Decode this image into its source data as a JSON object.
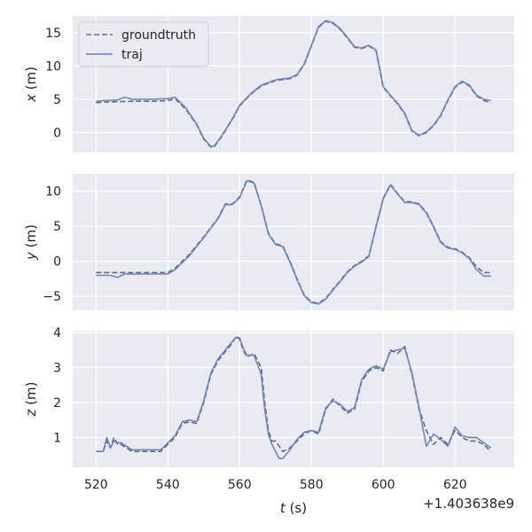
{
  "chart_data": {
    "type": "line",
    "shared_x": {
      "label_var": "t",
      "label_unit": " (s)",
      "ticks": [
        520,
        540,
        560,
        580,
        600,
        620
      ],
      "tick_labels": [
        "520",
        "540",
        "560",
        "580",
        "600",
        "620"
      ],
      "range": [
        513.5,
        636.5
      ],
      "offset_text": "+1.403638e9"
    },
    "legend": {
      "placement": "upper-left of top panel",
      "entries": [
        {
          "label": "groundtruth",
          "style": "dashed",
          "color": "#6b6b6b"
        },
        {
          "label": "traj",
          "style": "solid",
          "color": "#6a7fc0"
        }
      ]
    },
    "panels": [
      {
        "ylabel_var": "x",
        "ylabel_unit": " (m)",
        "ylim": [
          -3.0,
          17.5
        ],
        "yticks": [
          0,
          5,
          10,
          15
        ],
        "ytick_labels": [
          "0",
          "5",
          "10",
          "15"
        ],
        "series": [
          {
            "name": "groundtruth",
            "x": [
              520,
              524,
              530,
              536,
              540,
              542,
              545,
              548,
              550,
              552,
              553,
              555,
              558,
              560,
              563,
              566,
              570,
              574,
              576,
              578,
              580,
              582,
              584,
              586,
              588,
              590,
              592,
              594,
              596,
              598,
              600,
              602,
              604,
              606,
              608,
              610,
              612,
              614,
              616,
              618,
              620,
              622,
              624,
              626,
              628,
              630
            ],
            "y": [
              4.5,
              4.6,
              4.7,
              4.7,
              4.8,
              5.1,
              3.5,
              1.2,
              -1.0,
              -2.2,
              -2.1,
              -0.6,
              2.0,
              4.0,
              5.7,
              7.0,
              7.8,
              8.1,
              8.6,
              10.2,
              13.0,
              15.8,
              16.7,
              16.4,
              15.5,
              14.2,
              12.8,
              12.6,
              13.0,
              12.3,
              6.8,
              5.5,
              4.3,
              2.8,
              0.2,
              -0.5,
              0.0,
              1.0,
              2.5,
              4.8,
              6.8,
              7.6,
              7.0,
              5.5,
              4.8,
              4.5
            ]
          },
          {
            "name": "traj",
            "x": [
              520,
              522,
              526,
              528,
              530,
              536,
              540,
              542,
              545,
              548,
              550,
              552,
              553,
              555,
              558,
              560,
              563,
              566,
              570,
              574,
              576,
              578,
              580,
              582,
              584,
              586,
              588,
              590,
              592,
              594,
              596,
              598,
              600,
              602,
              604,
              606,
              608,
              610,
              612,
              614,
              616,
              618,
              620,
              622,
              624,
              626,
              628,
              630
            ],
            "y": [
              4.7,
              4.8,
              4.9,
              5.3,
              5.0,
              5.0,
              5.1,
              5.3,
              3.7,
              1.3,
              -0.9,
              -2.1,
              -2.0,
              -0.5,
              2.1,
              4.1,
              5.8,
              7.1,
              7.9,
              8.2,
              8.7,
              10.3,
              13.1,
              15.9,
              16.8,
              16.5,
              15.6,
              14.3,
              12.9,
              12.7,
              13.1,
              12.4,
              6.9,
              5.6,
              4.4,
              2.9,
              0.3,
              -0.4,
              0.1,
              1.1,
              2.6,
              4.9,
              6.9,
              7.7,
              7.1,
              5.6,
              5.0,
              4.8
            ]
          }
        ]
      },
      {
        "ylabel_var": "y",
        "ylabel_unit": " (m)",
        "ylim": [
          -7.0,
          12.5
        ],
        "yticks": [
          -5,
          0,
          5,
          10
        ],
        "ytick_labels": [
          "−5",
          "0",
          "5",
          "10"
        ],
        "series": [
          {
            "name": "groundtruth",
            "x": [
              520,
              528,
              535,
              540,
              542,
              546,
              550,
              554,
              556,
              558,
              560,
              562,
              564,
              566,
              568,
              570,
              572,
              574,
              576,
              578,
              580,
              582,
              584,
              586,
              588,
              590,
              592,
              594,
              596,
              598,
              600,
              602,
              604,
              606,
              608,
              610,
              612,
              614,
              616,
              618,
              620,
              622,
              624,
              626,
              628,
              630
            ],
            "y": [
              -1.6,
              -1.6,
              -1.6,
              -1.6,
              -1.0,
              1.0,
              3.5,
              6.2,
              8.2,
              8.2,
              9.2,
              11.6,
              11.3,
              8.0,
              4.0,
              2.5,
              2.2,
              0.0,
              -2.5,
              -4.8,
              -5.8,
              -6.0,
              -5.3,
              -4.0,
              -2.8,
              -1.5,
              -0.6,
              0.0,
              0.8,
              5.0,
              9.0,
              11.0,
              9.7,
              8.5,
              8.5,
              8.2,
              7.0,
              5.0,
              2.8,
              2.0,
              1.8,
              1.3,
              0.5,
              -0.8,
              -1.6,
              -1.6
            ]
          },
          {
            "name": "traj",
            "x": [
              520,
              524,
              526,
              528,
              532,
              535,
              540,
              542,
              546,
              550,
              554,
              556,
              558,
              560,
              562,
              564,
              566,
              568,
              570,
              572,
              574,
              576,
              578,
              580,
              582,
              584,
              586,
              588,
              590,
              592,
              594,
              596,
              598,
              600,
              602,
              604,
              606,
              608,
              610,
              612,
              614,
              616,
              618,
              620,
              622,
              624,
              626,
              628,
              630
            ],
            "y": [
              -2.0,
              -2.0,
              -2.3,
              -1.8,
              -1.8,
              -1.8,
              -1.8,
              -1.2,
              0.8,
              3.4,
              6.1,
              8.1,
              8.1,
              9.1,
              11.5,
              11.2,
              7.9,
              3.9,
              2.4,
              2.1,
              -0.1,
              -2.6,
              -4.9,
              -5.9,
              -6.1,
              -5.4,
              -4.1,
              -2.9,
              -1.6,
              -0.7,
              -0.1,
              0.7,
              4.9,
              8.9,
              10.9,
              9.6,
              8.4,
              8.4,
              8.1,
              6.9,
              4.9,
              2.7,
              1.9,
              1.7,
              1.2,
              0.4,
              -1.2,
              -2.1,
              -2.1
            ]
          }
        ]
      },
      {
        "ylabel_var": "z",
        "ylabel_unit": " (m)",
        "ylim": [
          0.15,
          4.05
        ],
        "yticks": [
          1,
          2,
          3,
          4
        ],
        "ytick_labels": [
          "1",
          "2",
          "3",
          "4"
        ],
        "series": [
          {
            "name": "groundtruth",
            "x": [
              520,
              521,
              522,
              523,
              524,
              525,
              526,
              527,
              530,
              534,
              538,
              540,
              542,
              544,
              546,
              548,
              550,
              552,
              554,
              556,
              558,
              559,
              560,
              561,
              562,
              564,
              566,
              567,
              568,
              569,
              570,
              572,
              574,
              576,
              578,
              580,
              582,
              584,
              586,
              588,
              590,
              592,
              594,
              596,
              598,
              600,
              602,
              604,
              606,
              608,
              610,
              612,
              614,
              616,
              618,
              620,
              622,
              624,
              626,
              628,
              630
            ],
            "y": [
              0.6,
              0.6,
              0.6,
              0.9,
              0.7,
              1.0,
              0.8,
              0.8,
              0.6,
              0.6,
              0.6,
              0.8,
              1.0,
              1.4,
              1.45,
              1.4,
              2.0,
              2.8,
              3.2,
              3.45,
              3.7,
              3.9,
              3.8,
              3.5,
              3.3,
              3.4,
              3.0,
              2.0,
              1.2,
              0.9,
              0.9,
              0.6,
              0.7,
              0.9,
              1.1,
              1.2,
              1.1,
              1.8,
              2.1,
              1.9,
              1.7,
              1.8,
              2.6,
              2.9,
              3.0,
              2.9,
              3.5,
              3.4,
              3.6,
              2.8,
              1.8,
              1.2,
              0.8,
              1.0,
              0.8,
              1.2,
              1.0,
              0.9,
              0.9,
              0.8,
              0.6
            ]
          },
          {
            "name": "traj",
            "x": [
              520,
              521,
              522,
              523,
              524,
              525,
              526,
              527,
              530,
              534,
              538,
              540,
              542,
              544,
              546,
              548,
              550,
              552,
              554,
              556,
              558,
              559,
              560,
              561,
              562,
              564,
              566,
              567,
              568,
              569,
              570,
              571,
              572,
              574,
              576,
              578,
              580,
              582,
              584,
              586,
              588,
              590,
              592,
              594,
              596,
              598,
              600,
              602,
              604,
              606,
              608,
              610,
              612,
              614,
              616,
              618,
              620,
              622,
              624,
              626,
              628,
              630
            ],
            "y": [
              0.6,
              0.6,
              0.6,
              1.0,
              0.7,
              0.9,
              0.85,
              0.85,
              0.65,
              0.65,
              0.65,
              0.85,
              1.05,
              1.45,
              1.5,
              1.45,
              2.05,
              2.85,
              3.25,
              3.5,
              3.75,
              3.85,
              3.85,
              3.55,
              3.35,
              3.35,
              2.8,
              1.8,
              1.1,
              0.8,
              0.6,
              0.4,
              0.4,
              0.65,
              0.95,
              1.15,
              1.2,
              1.15,
              1.85,
              2.05,
              1.95,
              1.75,
              1.85,
              2.65,
              2.95,
              3.05,
              2.95,
              3.45,
              3.5,
              3.55,
              2.85,
              1.85,
              0.75,
              1.1,
              0.95,
              0.75,
              1.3,
              1.05,
              1.0,
              1.0,
              0.85,
              0.7
            ]
          }
        ]
      }
    ]
  }
}
